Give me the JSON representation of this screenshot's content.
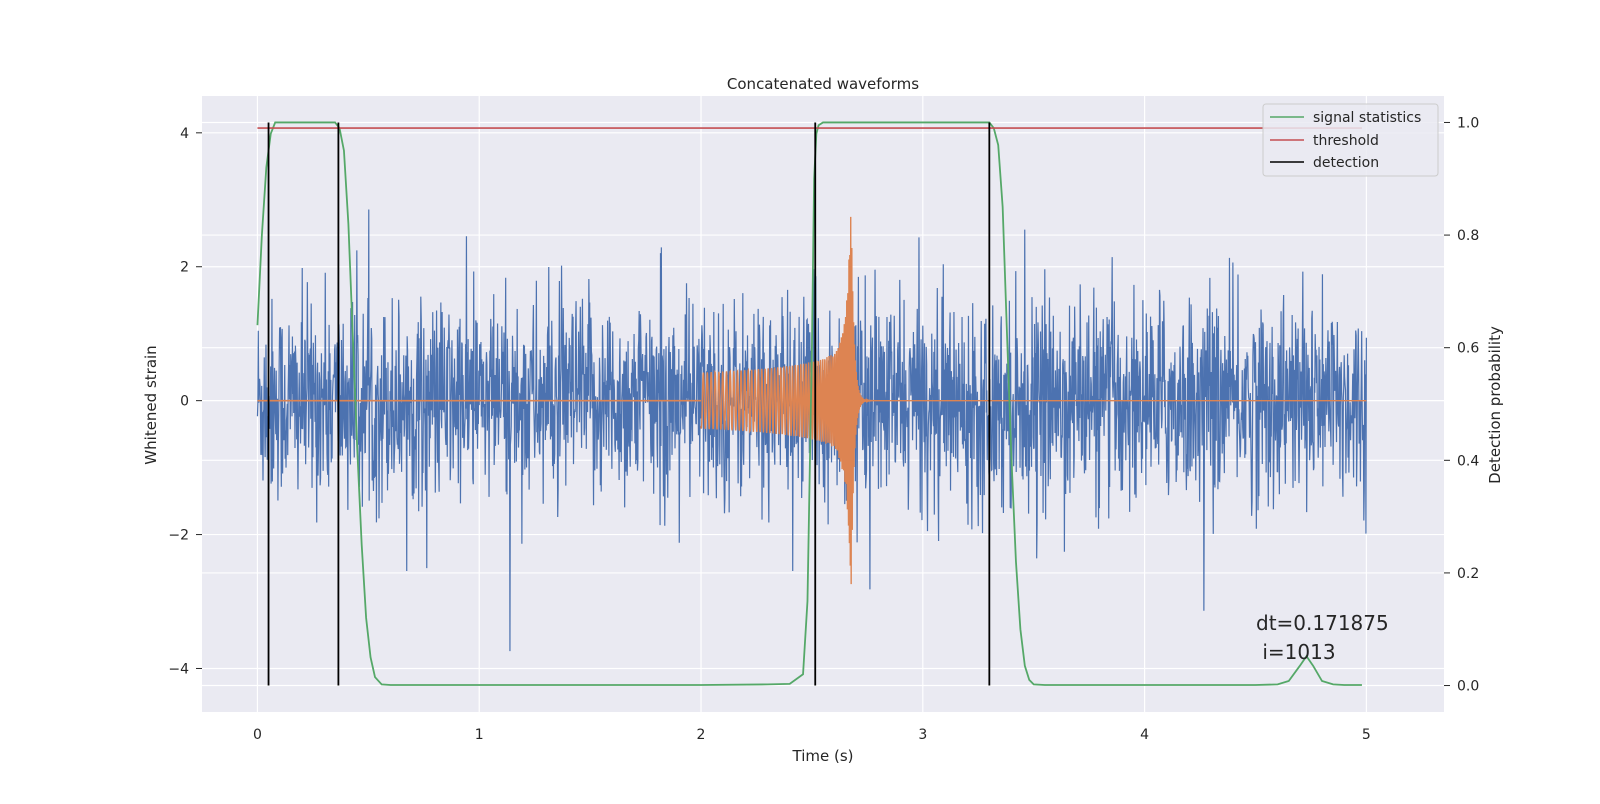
{
  "chart_data": {
    "type": "line",
    "title": "Concatenated waveforms",
    "xlabel": "Time (s)",
    "ylabel": "Whitened strain",
    "y2label": "Detection probability",
    "xlim": [
      -0.25,
      5.35
    ],
    "ylim": [
      -4.65,
      4.55
    ],
    "y2lim": [
      -0.047,
      1.047
    ],
    "x_ticks": [
      0,
      1,
      2,
      3,
      4,
      5
    ],
    "y_ticks": [
      -4,
      -2,
      0,
      2,
      4
    ],
    "y2_ticks": [
      0.0,
      0.2,
      0.4,
      0.6,
      0.8,
      1.0
    ],
    "y2_tick_labels": [
      "0.0",
      "0.2",
      "0.4",
      "0.6",
      "0.8",
      "1.0"
    ],
    "y_tick_labels": [
      "−4",
      "−2",
      "0",
      "2",
      "4"
    ],
    "grid": true,
    "legend_position": "top-right",
    "colors": {
      "background": "#eaeaf2",
      "grid": "#ffffff",
      "strain": "#4c72b0",
      "template": "#dd8452",
      "signal_statistics": "#55a868",
      "threshold": "#c44e52",
      "detection": "#000000"
    },
    "series": [
      {
        "name": "signal statistics",
        "axis": "right",
        "x": [
          0.0,
          0.02,
          0.04,
          0.06,
          0.08,
          0.1,
          0.15,
          0.2,
          0.25,
          0.3,
          0.35,
          0.37,
          0.39,
          0.41,
          0.43,
          0.45,
          0.47,
          0.49,
          0.51,
          0.53,
          0.56,
          0.6,
          1.0,
          1.5,
          2.0,
          2.3,
          2.4,
          2.46,
          2.48,
          2.5,
          2.51,
          2.52,
          2.53,
          2.55,
          2.6,
          3.0,
          3.3,
          3.32,
          3.34,
          3.36,
          3.38,
          3.4,
          3.42,
          3.44,
          3.46,
          3.48,
          3.5,
          3.55,
          4.0,
          4.5,
          4.6,
          4.65,
          4.7,
          4.73,
          4.76,
          4.8,
          4.85,
          4.9,
          4.98
        ],
        "y": [
          0.64,
          0.8,
          0.92,
          0.98,
          1.0,
          1.0,
          1.0,
          1.0,
          1.0,
          1.0,
          1.0,
          0.99,
          0.95,
          0.82,
          0.62,
          0.42,
          0.25,
          0.12,
          0.05,
          0.015,
          0.002,
          0.001,
          0.001,
          0.001,
          0.001,
          0.002,
          0.003,
          0.02,
          0.15,
          0.6,
          0.9,
          0.98,
          0.995,
          1.0,
          1.0,
          1.0,
          1.0,
          0.99,
          0.96,
          0.85,
          0.62,
          0.4,
          0.22,
          0.1,
          0.035,
          0.01,
          0.002,
          0.001,
          0.001,
          0.001,
          0.002,
          0.008,
          0.035,
          0.052,
          0.035,
          0.008,
          0.002,
          0.001,
          0.001
        ]
      },
      {
        "name": "threshold",
        "axis": "right",
        "x": [
          0.0,
          4.98
        ],
        "y": [
          0.99,
          0.99
        ]
      },
      {
        "name": "detection",
        "axis": "right",
        "vlines_x": [
          0.05,
          0.365,
          2.515,
          3.3
        ],
        "y_range": [
          0.0,
          1.0
        ]
      },
      {
        "name": "",
        "axis": "left",
        "kind": "noise",
        "x_range": [
          0.0,
          5.0
        ],
        "approx_std": 0.75,
        "min": -4.3,
        "max": 4.15
      },
      {
        "name": "",
        "axis": "left",
        "kind": "chirp",
        "x_range": [
          2.0,
          5.0
        ],
        "merger_time": 2.68,
        "peak_amplitude": 2.85
      }
    ]
  },
  "annotation": {
    "dt_text": "dt=0.171875",
    "i_text": " i=1013"
  }
}
